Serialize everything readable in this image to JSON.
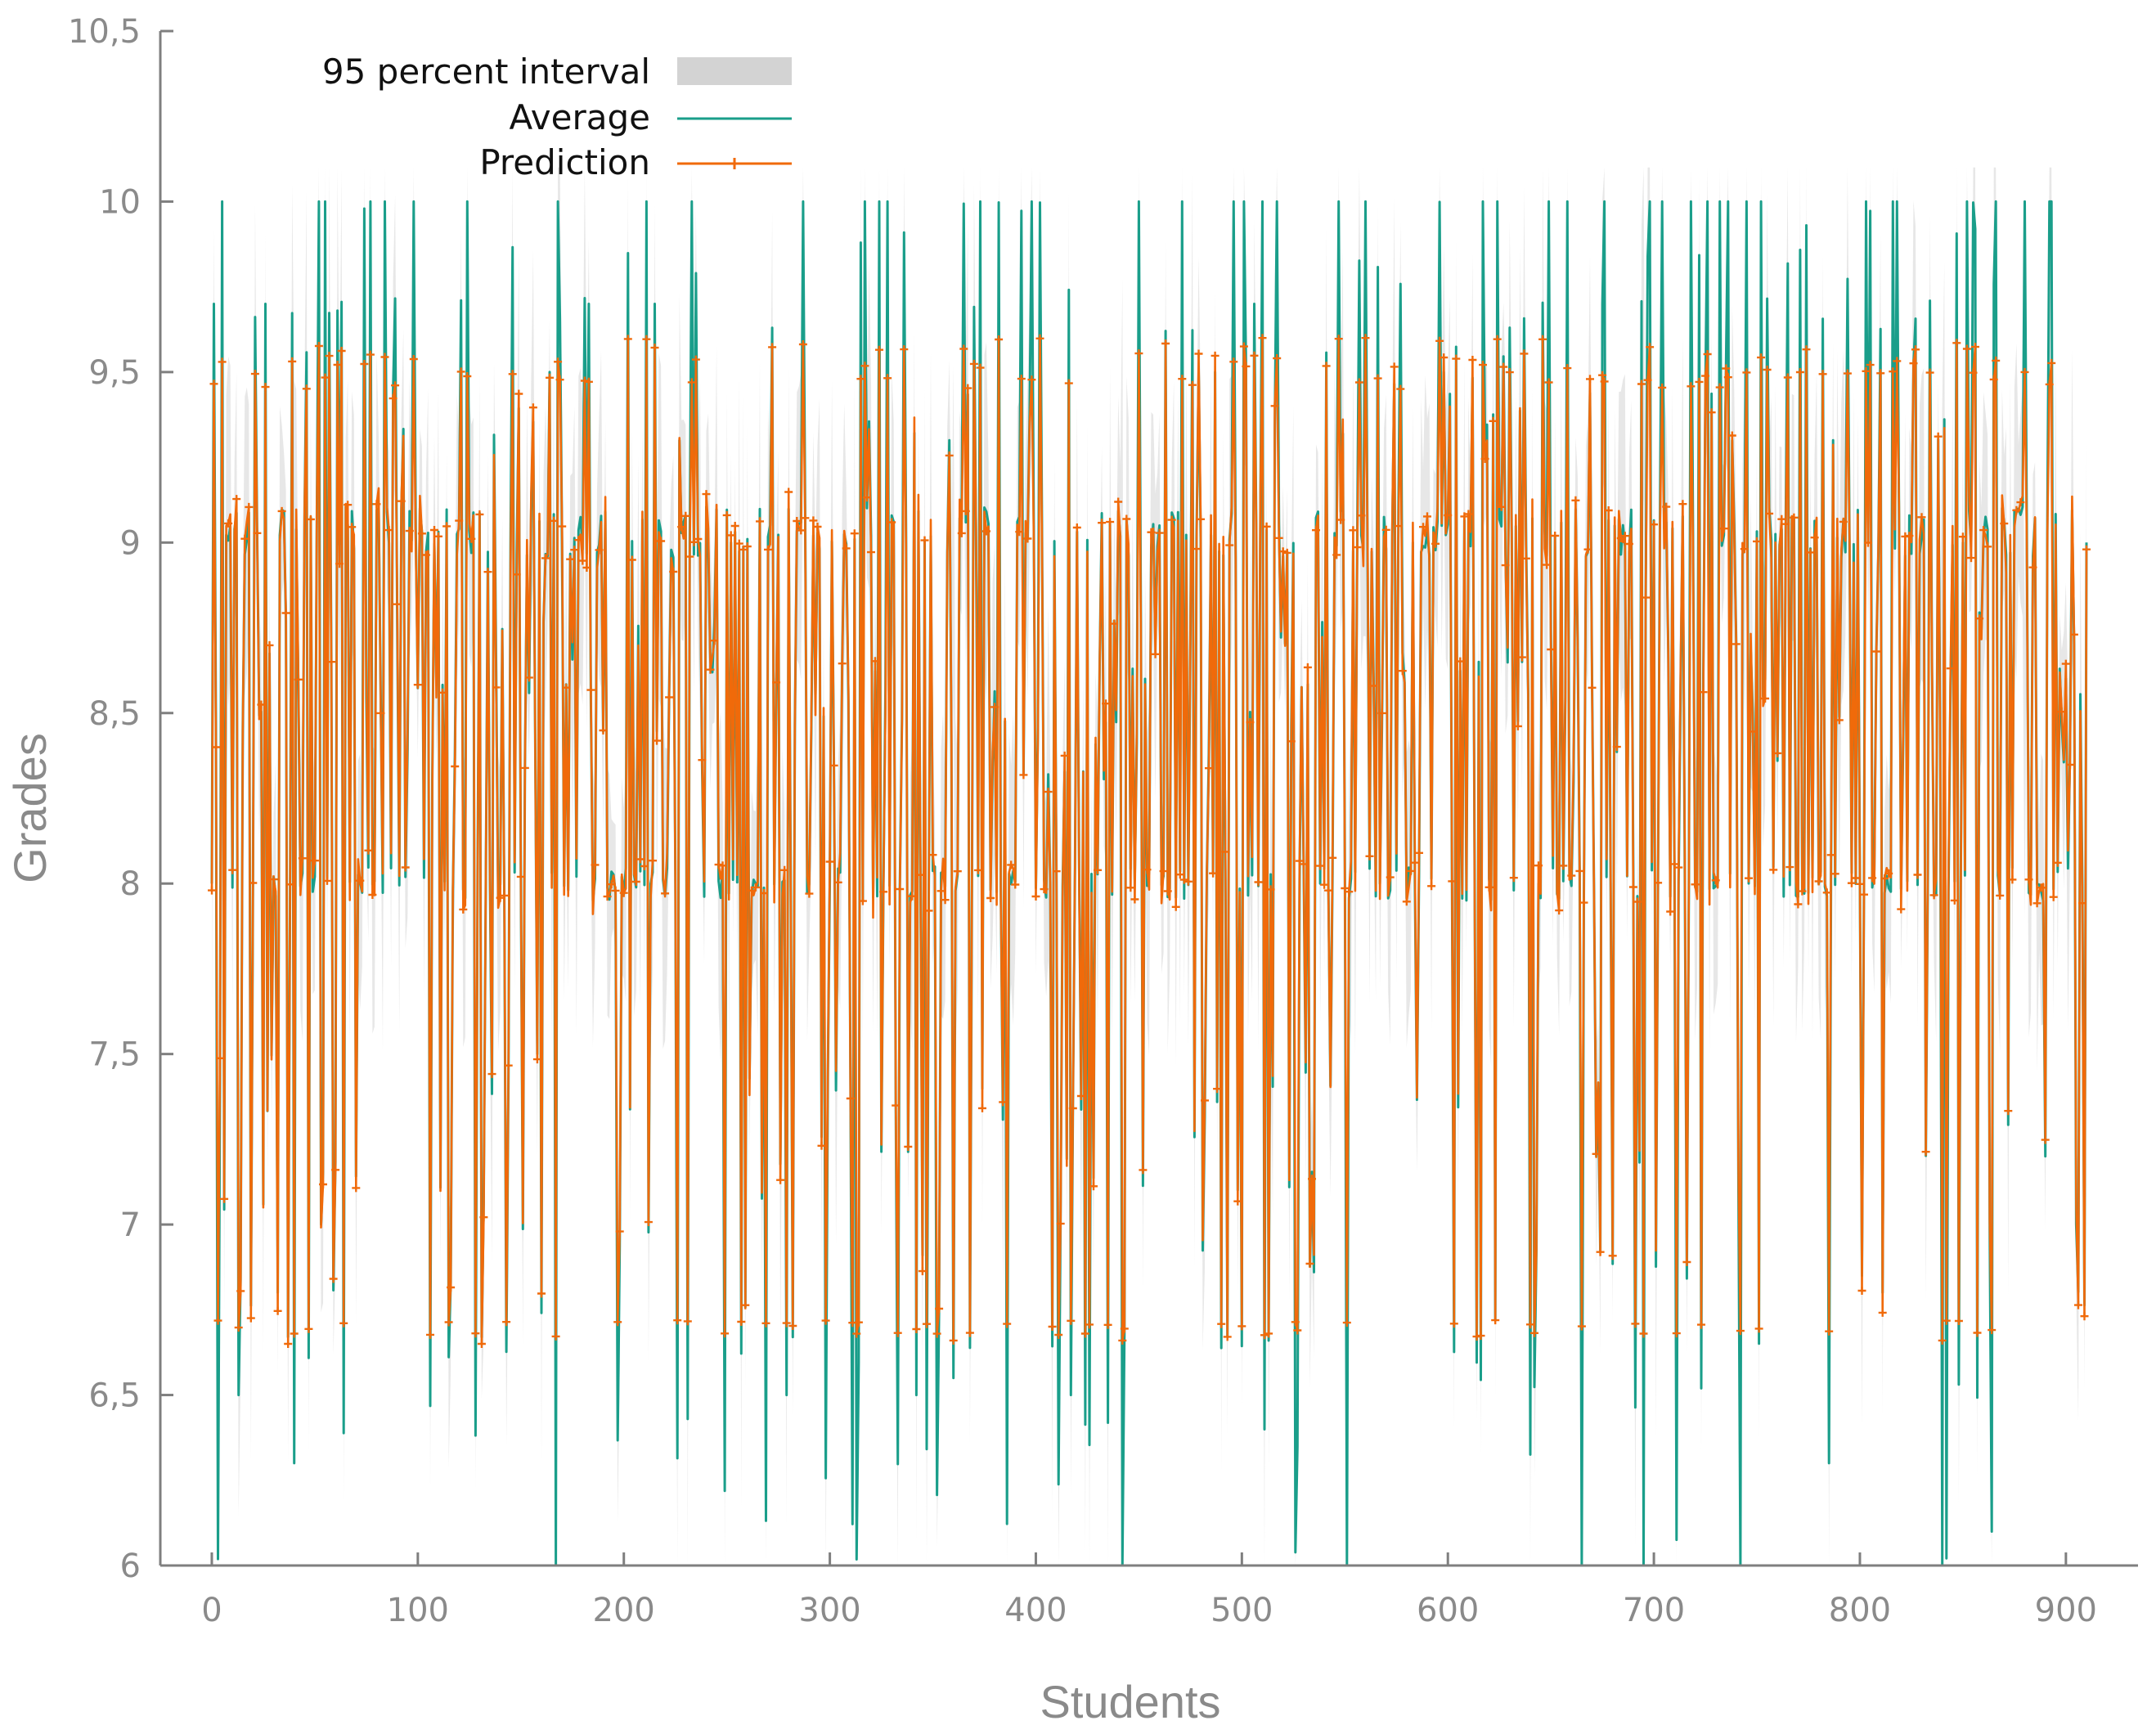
{
  "chart_data": {
    "type": "line",
    "title": "",
    "xlabel": "Students",
    "ylabel": "Grades",
    "xlim": [
      -25,
      935
    ],
    "ylim": [
      6,
      10.5
    ],
    "xticks": [
      0,
      100,
      200,
      300,
      400,
      500,
      600,
      700,
      800,
      900
    ],
    "yticks": [
      6,
      6.5,
      7,
      7.5,
      8,
      8.5,
      9,
      9.5,
      10,
      10.5
    ],
    "xtick_labels": [
      "0",
      "100",
      "200",
      "300",
      "400",
      "500",
      "600",
      "700",
      "800",
      "900"
    ],
    "ytick_labels": [
      "6",
      "6,5",
      "7",
      "7,5",
      "8",
      "8,5",
      "9",
      "9,5",
      "10",
      "10,5"
    ],
    "grid": false,
    "legend_position": "top-left",
    "n_students": 911,
    "series": [
      {
        "name": "95 percent interval",
        "kind": "band",
        "color": "#d3d3d3"
      },
      {
        "name": "Average",
        "kind": "line",
        "color": "#1a9e8a"
      },
      {
        "name": "Prediction",
        "kind": "line-marker",
        "color": "#f06a0a"
      }
    ],
    "grade_levels": [
      6.0,
      6.3,
      6.5,
      6.67,
      6.8,
      7.0,
      7.2,
      7.5,
      7.95,
      8.0,
      8.3,
      8.5,
      8.65,
      9.0,
      9.05,
      9.3,
      9.5,
      9.7,
      10.0
    ],
    "key_points": [
      {
        "x": 0,
        "average": 8.0,
        "prediction": 7.98
      },
      {
        "x": 5,
        "average": 10.0,
        "prediction": 9.53
      },
      {
        "x": 40,
        "average": 6.3,
        "prediction": 6.68
      },
      {
        "x": 233,
        "average": 10.0,
        "prediction": 9.47
      },
      {
        "x": 360,
        "average": 6.55,
        "prediction": 6.66
      },
      {
        "x": 442,
        "average": 6.0,
        "prediction": 6.66
      },
      {
        "x": 510,
        "average": 10.0,
        "prediction": 9.6
      },
      {
        "x": 560,
        "average": 10.0,
        "prediction": 9.6
      },
      {
        "x": 695,
        "average": 6.0,
        "prediction": 6.68
      },
      {
        "x": 840,
        "average": 6.0,
        "prediction": 6.66
      },
      {
        "x": 880,
        "average": 10.0,
        "prediction": 9.5
      },
      {
        "x": 910,
        "average": 9.0,
        "prediction": 8.98
      }
    ]
  }
}
